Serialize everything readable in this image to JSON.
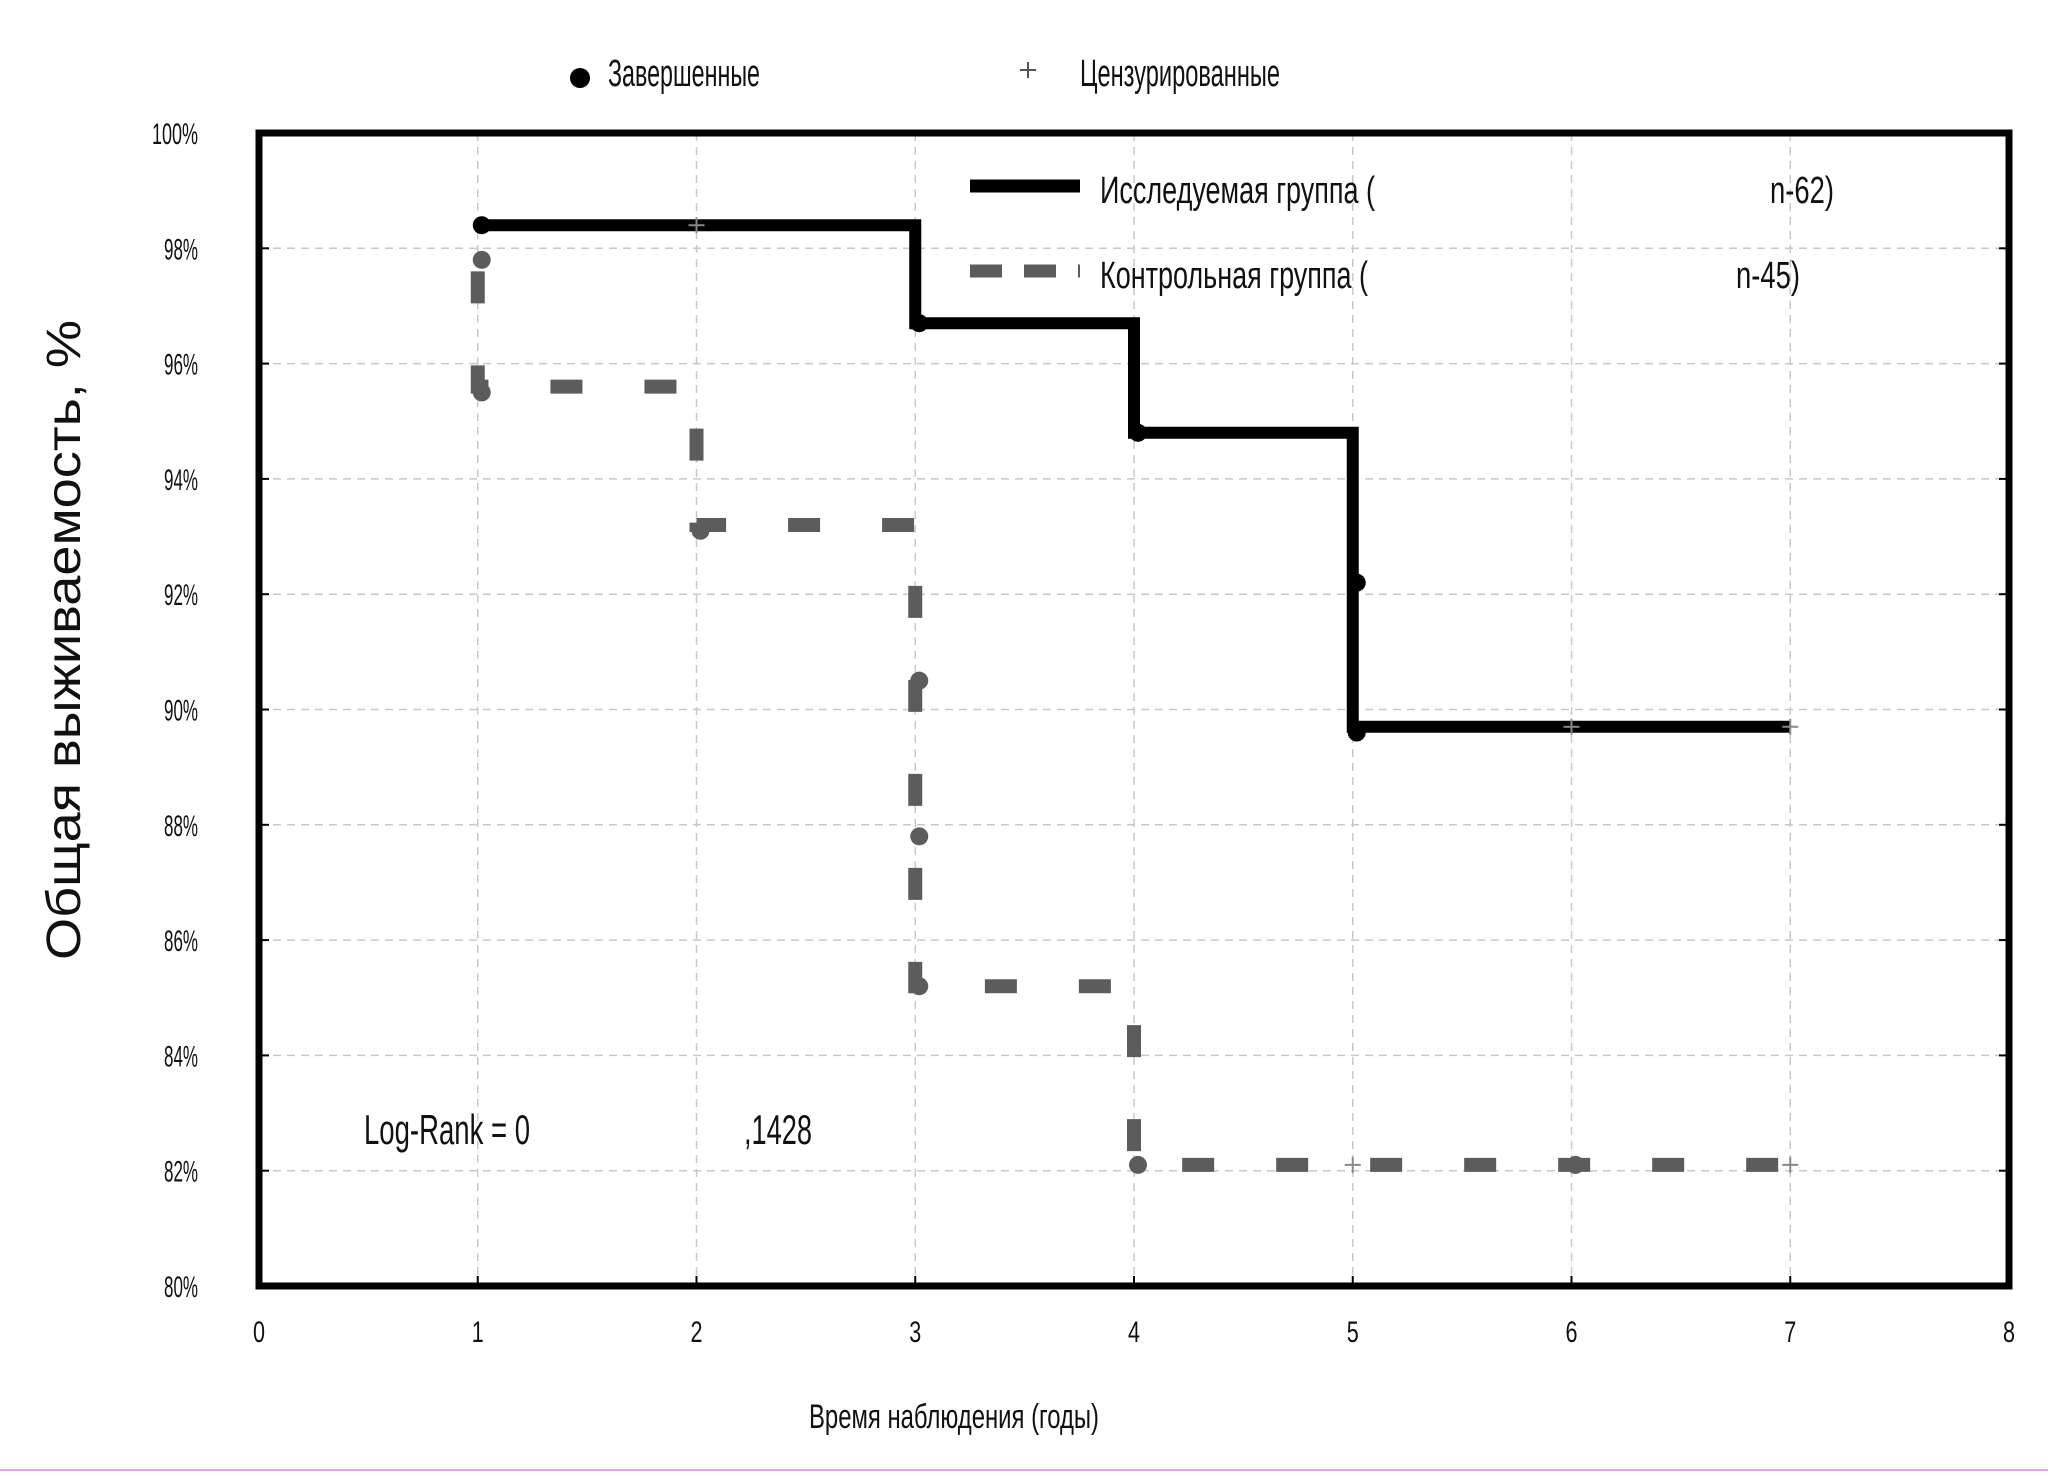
{
  "chart_data": {
    "type": "line",
    "step": true,
    "title": "",
    "xlabel": "Время наблюдения (годы)",
    "ylabel": "Общая выживаемость, %",
    "xlim": [
      0,
      8
    ],
    "ylim": [
      80,
      100
    ],
    "x_ticks": [
      "0",
      "1",
      "2",
      "3",
      "4",
      "5",
      "6",
      "7",
      "8"
    ],
    "y_ticks": [
      "80%",
      "82%",
      "84%",
      "86%",
      "88%",
      "90%",
      "92%",
      "94%",
      "96%",
      "98%",
      "100%"
    ],
    "grid": true,
    "marker_legend": {
      "completed": "Завершенные",
      "censored": "Цензурированные"
    },
    "series": [
      {
        "name": "Исследуемая группа (",
        "n_label": "n-62)",
        "style": "solid",
        "color": "#000000",
        "steps": [
          [
            1,
            98.4
          ],
          [
            3,
            96.7
          ],
          [
            4,
            94.8
          ],
          [
            5,
            89.7
          ],
          [
            7,
            89.7
          ]
        ],
        "completed": [
          [
            1,
            98.4
          ],
          [
            3,
            96.7
          ],
          [
            4,
            94.8
          ],
          [
            5,
            92.2
          ],
          [
            5,
            89.6
          ]
        ],
        "censored": [
          [
            2,
            98.4
          ],
          [
            6,
            89.7
          ],
          [
            7,
            89.7
          ]
        ]
      },
      {
        "name": "Контрольная группа (",
        "n_label": "n-45)",
        "style": "dashed",
        "color": "#5c5c5c",
        "steps": [
          [
            1,
            95.6
          ],
          [
            2,
            93.2
          ],
          [
            3,
            85.2
          ],
          [
            4,
            82.1
          ],
          [
            7,
            82.1
          ]
        ],
        "completed": [
          [
            1,
            97.8
          ],
          [
            1,
            95.5
          ],
          [
            2,
            93.1
          ],
          [
            3,
            90.5
          ],
          [
            3,
            87.8
          ],
          [
            3,
            85.2
          ],
          [
            4,
            82.1
          ],
          [
            6,
            82.1
          ]
        ],
        "censored": [
          [
            5,
            82.1
          ],
          [
            7,
            82.1
          ]
        ]
      }
    ],
    "annotation": {
      "prefix": "Log-Rank = 0",
      "value": ",1428"
    }
  },
  "colors": {
    "axis": "#000000",
    "grid": "#c8c8c8",
    "study_group": "#000000",
    "control_group": "#5c5c5c"
  }
}
